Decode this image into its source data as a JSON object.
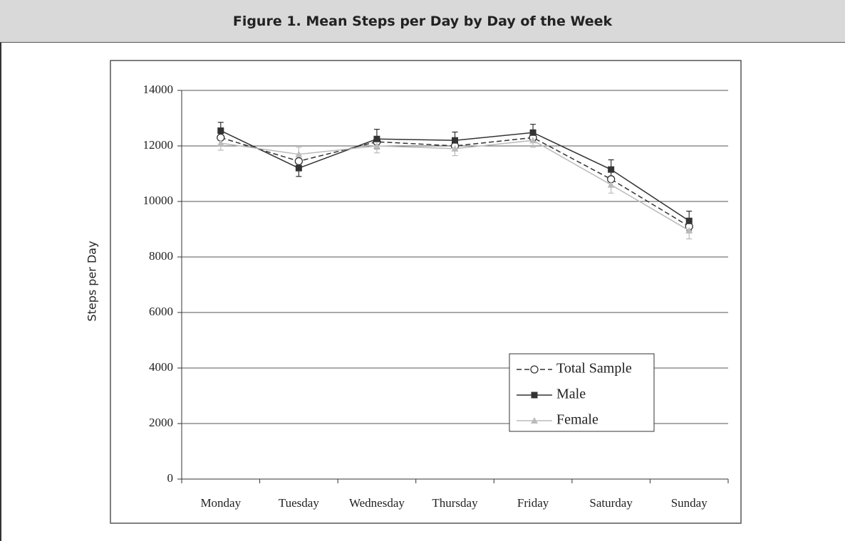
{
  "title": "Figure 1. Mean Steps per Day by Day of the Week",
  "chart_data": {
    "type": "line",
    "ylabel": "Steps per Day",
    "categories": [
      "Monday",
      "Tuesday",
      "Wednesday",
      "Thursday",
      "Friday",
      "Saturday",
      "Sunday"
    ],
    "ylim": [
      0,
      14000
    ],
    "yticks": [
      0,
      2000,
      4000,
      6000,
      8000,
      10000,
      12000,
      14000
    ],
    "grid": true,
    "series": [
      {
        "name": "Total Sample",
        "color": "#333333",
        "dashed": true,
        "marker": "circle",
        "values": [
          12300,
          11450,
          12150,
          12000,
          12300,
          10800,
          9100
        ]
      },
      {
        "name": "Male",
        "color": "#333333",
        "dashed": false,
        "marker": "square",
        "values": [
          12550,
          11200,
          12250,
          12200,
          12480,
          11150,
          9300
        ],
        "errors": [
          300,
          300,
          350,
          300,
          300,
          350,
          350
        ]
      },
      {
        "name": "Female",
        "color": "#bbbbbb",
        "dashed": false,
        "marker": "triangle",
        "values": [
          12100,
          11700,
          12000,
          11900,
          12200,
          10600,
          8950
        ],
        "errors": [
          250,
          250,
          250,
          250,
          250,
          300,
          300
        ]
      }
    ]
  }
}
